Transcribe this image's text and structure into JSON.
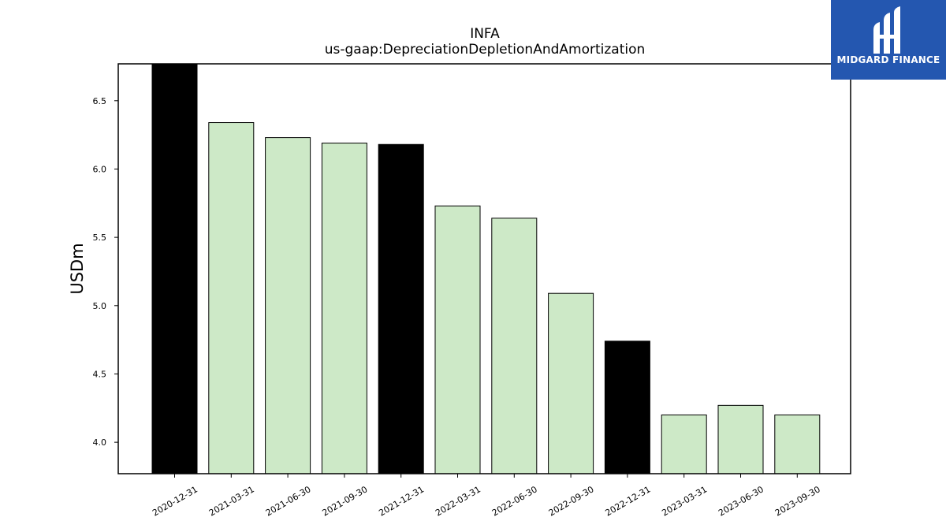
{
  "chart_data": {
    "type": "bar",
    "title": "INFA",
    "subtitle": "us-gaap:DepreciationDepletionAndAmortization",
    "xlabel": "",
    "ylabel": "USDm",
    "ylim": [
      3.77,
      6.77
    ],
    "yticks": [
      "4.0",
      "4.5",
      "5.0",
      "5.5",
      "6.0",
      "6.5"
    ],
    "grid": false,
    "categories": [
      "2020-12-31",
      "2021-03-31",
      "2021-06-30",
      "2021-09-30",
      "2021-12-31",
      "2022-03-31",
      "2022-06-30",
      "2022-09-30",
      "2022-12-31",
      "2023-03-31",
      "2023-06-30",
      "2023-09-30"
    ],
    "values": [
      6.78,
      6.34,
      6.23,
      6.19,
      6.18,
      5.73,
      5.64,
      5.09,
      4.74,
      4.2,
      4.27,
      4.2
    ],
    "bar_colors": [
      "#000000",
      "#cde9c7",
      "#cde9c7",
      "#cde9c7",
      "#000000",
      "#cde9c7",
      "#cde9c7",
      "#cde9c7",
      "#000000",
      "#cde9c7",
      "#cde9c7",
      "#cde9c7"
    ]
  },
  "logo": {
    "text": "MIDGARD FINANCE",
    "background": "#2457b0"
  }
}
